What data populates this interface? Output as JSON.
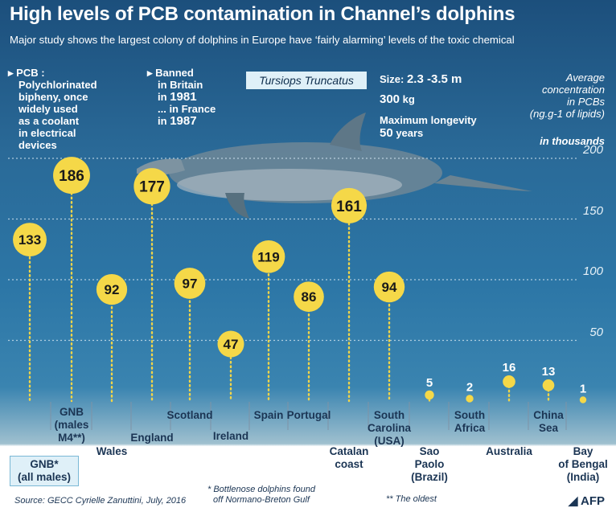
{
  "title": "High levels of PCB contamination in Channel’s dolphins",
  "subtitle": "Major study shows the largest colony of dolphins in Europe have ‘fairly alarming’ levels of the toxic chemical",
  "pcb_note": {
    "head": "PCB :",
    "lines": [
      "Polychlorinated",
      "bipheny, once",
      "widely used",
      "as a coolant",
      "in electrical",
      "devices"
    ]
  },
  "ban_note": {
    "line1": "Banned",
    "line2": "in Britain",
    "prefix1": "in",
    "year1": "1981",
    "line3": "... in France",
    "prefix2": "in",
    "year2": "1987"
  },
  "species": "Tursiops Truncatus",
  "facts": {
    "size_label": "Size:",
    "size_value": "2.3 -3.5 m",
    "weight_value": "300",
    "weight_unit": "kg",
    "longevity_label": "Maximum longevity",
    "longevity_value": "50",
    "longevity_unit": "years"
  },
  "legend": {
    "line1": "Average",
    "line2": "concentration",
    "line3": "in PCBs",
    "line4": "(ng.g-1 of lipids)",
    "unit": "in thousands"
  },
  "footnotes": {
    "source": "Source: GECC Cyrielle Zanuttini, July, 2016",
    "note1": "* Bottlenose dolphins found",
    "note1b": "off Normano-Breton Gulf",
    "note2": "** The oldest",
    "credit": "AFP"
  },
  "colors": {
    "bubble": "#f5d848",
    "bubble_text": "#1a1a1a",
    "dots": "#f0d448",
    "label_text": "#1b3554",
    "accent_box": "#dff0f8"
  },
  "chart_data": {
    "type": "scatter",
    "xlabel": "",
    "ylabel": "Average concentration in PCBs (ng.g-1 of lipids)",
    "y_unit": "in thousands",
    "ylim": [
      0,
      200
    ],
    "yticks": [
      50,
      100,
      150,
      200
    ],
    "grid": true,
    "categories": [
      "GNB* (all males)",
      "GNB (males M4**)",
      "Wales",
      "England",
      "Scotland",
      "Ireland",
      "Spain",
      "Portugal",
      "Catalan coast",
      "South Carolina (USA)",
      "Sao Paolo (Brazil)",
      "South Africa",
      "Australia",
      "China Sea",
      "Bay of Bengal (India)"
    ],
    "values": [
      133,
      186,
      92,
      177,
      97,
      47,
      119,
      86,
      161,
      94,
      5,
      2,
      16,
      13,
      1
    ]
  }
}
